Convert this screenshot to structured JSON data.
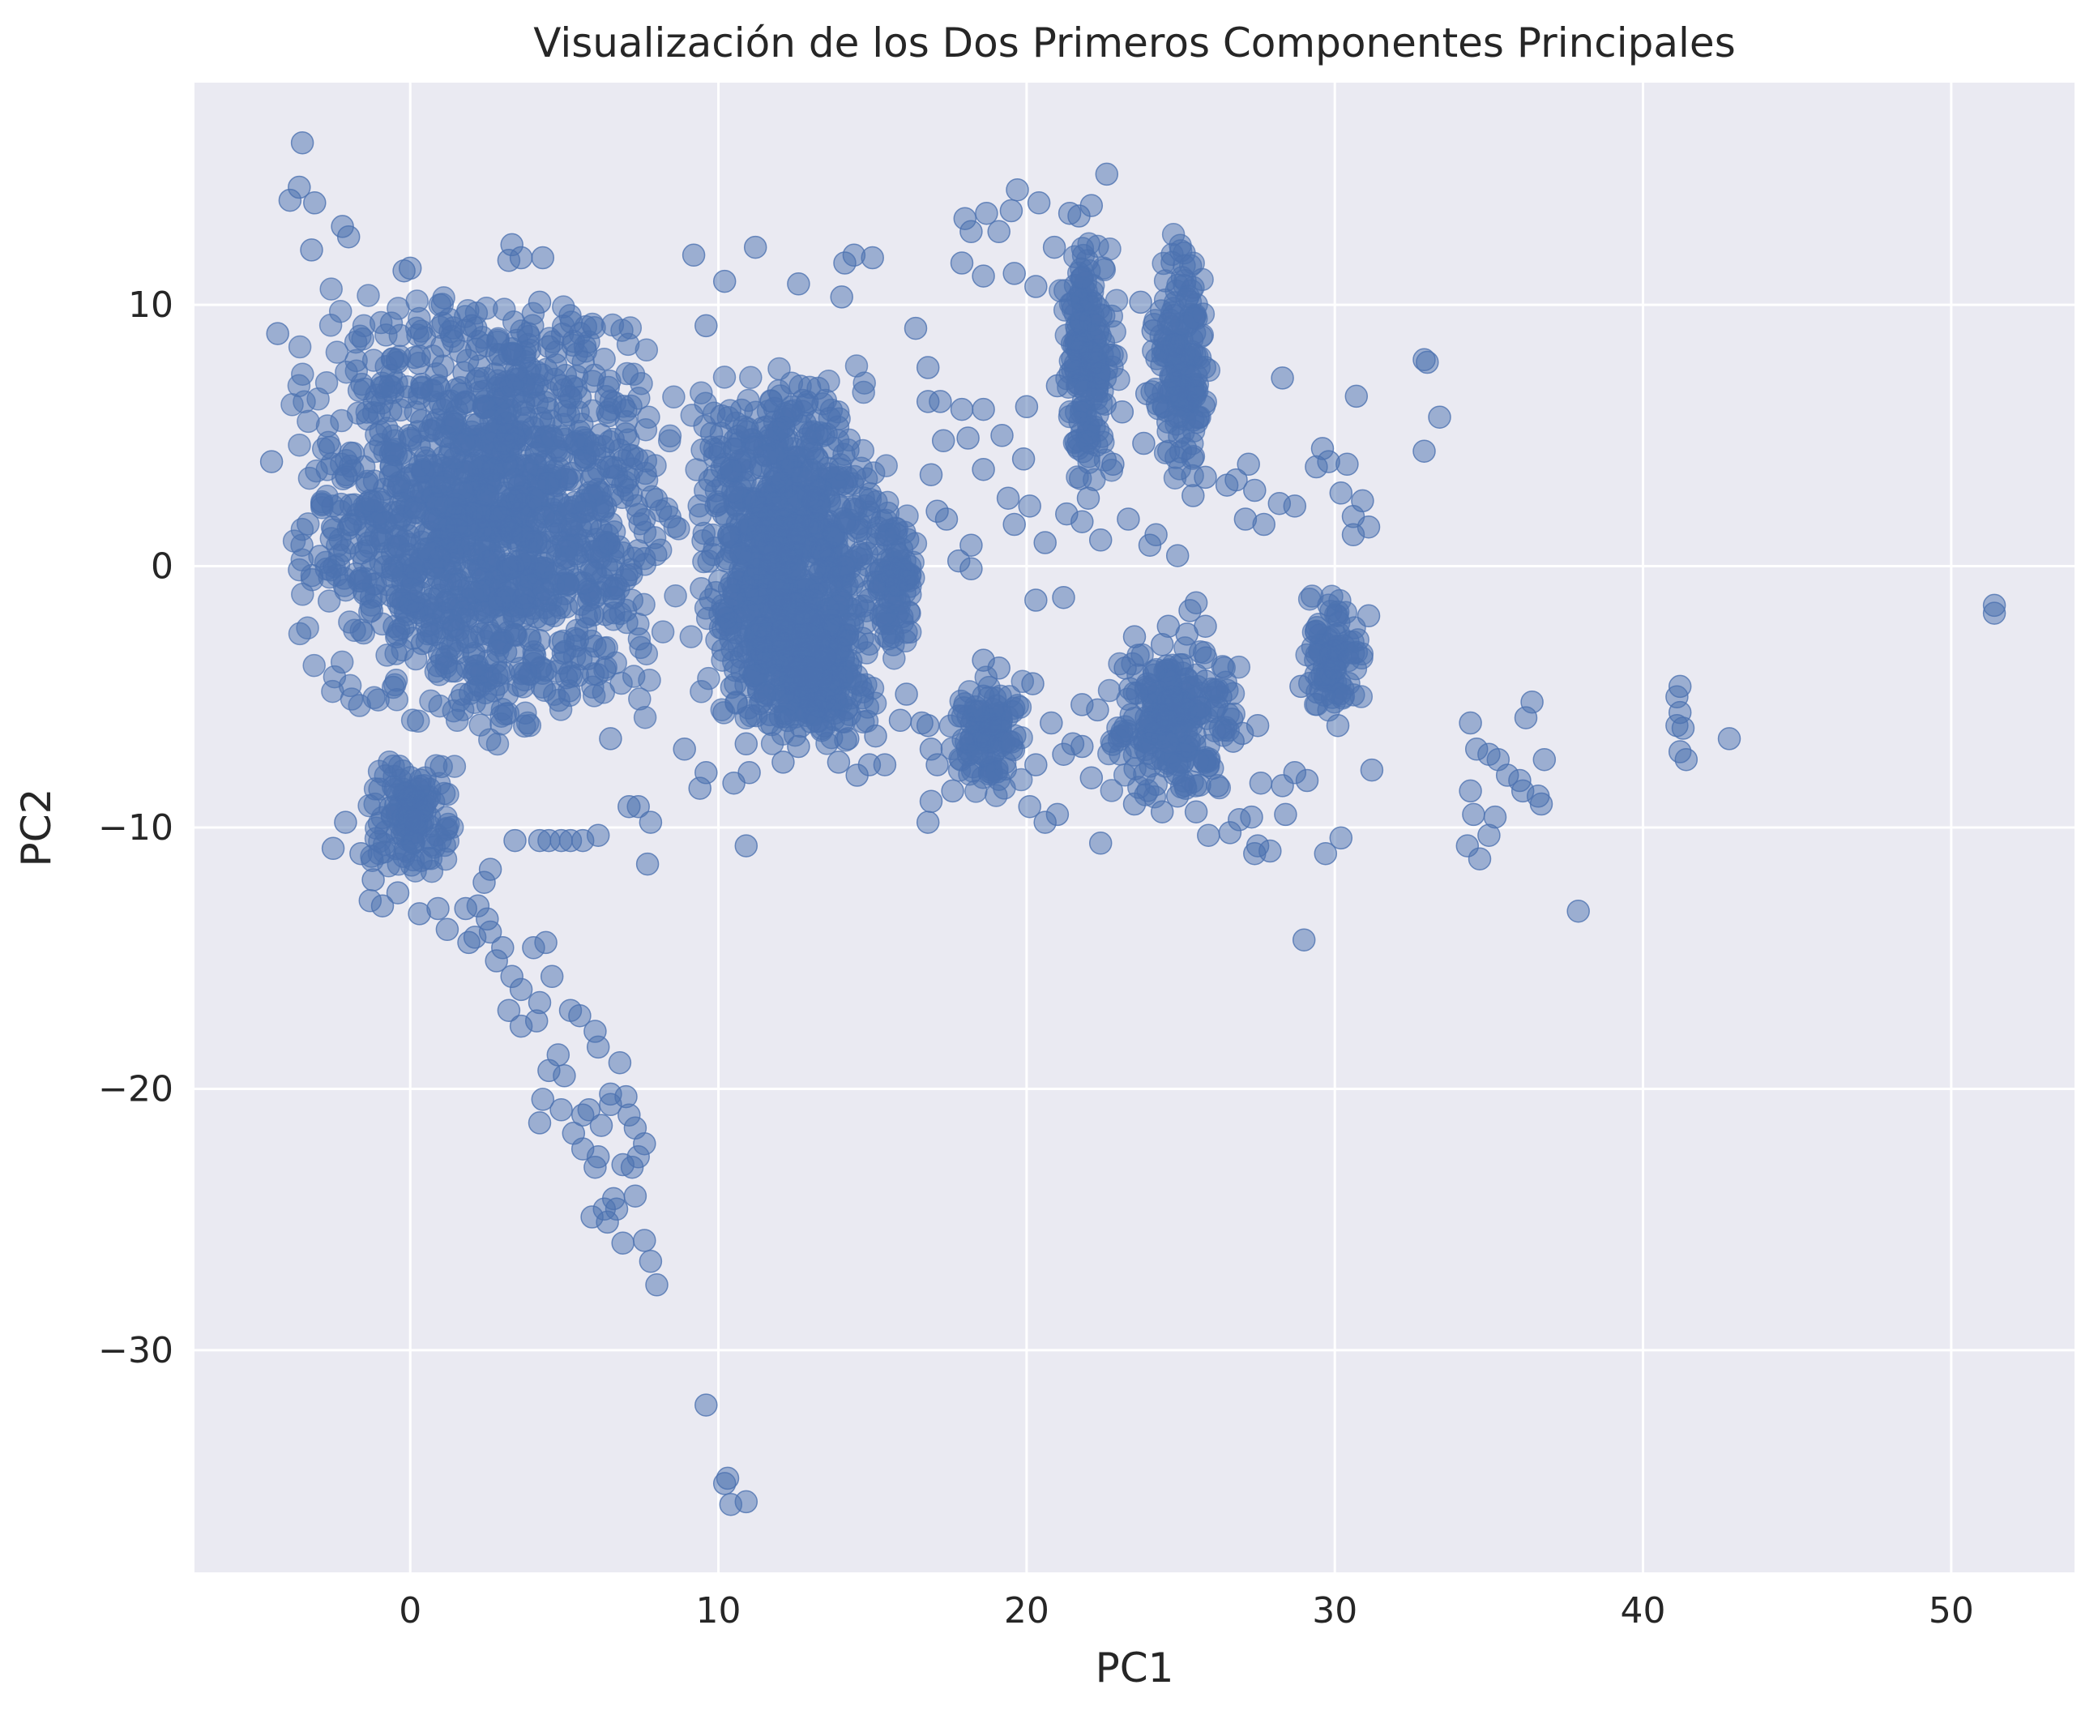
{
  "chart_data": {
    "type": "scatter",
    "title": "Visualización de los Dos Primeros Componentes Principales",
    "xlabel": "PC1",
    "ylabel": "PC2",
    "xlim": [
      -7,
      54
    ],
    "ylim": [
      -38.5,
      18.5
    ],
    "xticks": [
      0,
      10,
      20,
      30,
      40,
      50
    ],
    "yticks": [
      10,
      0,
      -10,
      -20,
      -30
    ],
    "xtick_labels": [
      "0",
      "10",
      "20",
      "30",
      "40",
      "50"
    ],
    "ytick_labels": [
      "10",
      "0",
      "−10",
      "−20",
      "−30"
    ],
    "grid": true,
    "background_color": "#eaeaf2",
    "point_color": "#4c72b0",
    "point_alpha": 0.5,
    "dense_regions": [
      {
        "x_range": [
          -4,
          9
        ],
        "y_range": [
          -7,
          11
        ]
      },
      {
        "x_range": [
          -1.5,
          1.5
        ],
        "y_range": [
          -12,
          -7
        ]
      },
      {
        "x_range": [
          9,
          15.5
        ],
        "y_range": [
          -7,
          8
        ]
      },
      {
        "x_range": [
          11,
          15
        ],
        "y_range": [
          -7,
          -1
        ]
      },
      {
        "x_range": [
          15,
          16.5
        ],
        "y_range": [
          -4,
          3
        ]
      },
      {
        "x_range": [
          21,
          23
        ],
        "y_range": [
          3,
          13
        ]
      },
      {
        "x_range": [
          24,
          26
        ],
        "y_range": [
          3,
          13
        ]
      },
      {
        "x_range": [
          22.5,
          27
        ],
        "y_range": [
          -9,
          -3
        ]
      },
      {
        "x_range": [
          17.5,
          20
        ],
        "y_range": [
          -9,
          -4
        ]
      },
      {
        "x_range": [
          29,
          31
        ],
        "y_range": [
          -6,
          -1
        ]
      }
    ],
    "points": [
      [
        -3.5,
        16.2
      ],
      [
        -3.6,
        14.5
      ],
      [
        -3.9,
        14.0
      ],
      [
        -3.1,
        13.9
      ],
      [
        -2.2,
        13.0
      ],
      [
        -2.0,
        12.6
      ],
      [
        -3.2,
        12.1
      ],
      [
        -0.2,
        11.3
      ],
      [
        0.0,
        11.4
      ],
      [
        3.3,
        12.3
      ],
      [
        3.2,
        11.7
      ],
      [
        3.6,
        11.8
      ],
      [
        4.3,
        11.8
      ],
      [
        4.2,
        10.1
      ],
      [
        -4.3,
        8.9
      ],
      [
        -4.5,
        4.0
      ],
      [
        2.0,
        9.2
      ],
      [
        3.0,
        7.7
      ],
      [
        4.5,
        8.4
      ],
      [
        5.3,
        8.6
      ],
      [
        4.9,
        6.9
      ],
      [
        9.2,
        11.9
      ],
      [
        10.2,
        10.9
      ],
      [
        9.6,
        9.2
      ],
      [
        11.2,
        12.2
      ],
      [
        12.6,
        10.8
      ],
      [
        14.1,
        11.6
      ],
      [
        14.4,
        11.9
      ],
      [
        15.0,
        11.8
      ],
      [
        14.0,
        10.3
      ],
      [
        16.4,
        9.1
      ],
      [
        16.8,
        7.6
      ],
      [
        17.9,
        6.0
      ],
      [
        17.2,
        6.3
      ],
      [
        16.8,
        6.3
      ],
      [
        18.6,
        6.0
      ],
      [
        17.3,
        4.8
      ],
      [
        18.1,
        4.9
      ],
      [
        18.6,
        3.7
      ],
      [
        19.2,
        5.0
      ],
      [
        20.0,
        6.1
      ],
      [
        21.0,
        6.9
      ],
      [
        16.9,
        3.5
      ],
      [
        17.1,
        2.1
      ],
      [
        17.4,
        1.8
      ],
      [
        18.2,
        0.8
      ],
      [
        17.8,
        0.2
      ],
      [
        18.2,
        -0.1
      ],
      [
        16.2,
        -1.8
      ],
      [
        19.4,
        2.6
      ],
      [
        19.6,
        1.6
      ],
      [
        20.6,
        0.9
      ],
      [
        20.3,
        -1.3
      ],
      [
        21.2,
        -1.2
      ],
      [
        20.1,
        2.3
      ],
      [
        19.9,
        4.1
      ],
      [
        18.0,
        13.3
      ],
      [
        18.2,
        12.8
      ],
      [
        18.7,
        13.5
      ],
      [
        19.1,
        12.8
      ],
      [
        19.7,
        14.4
      ],
      [
        20.4,
        13.9
      ],
      [
        19.5,
        13.6
      ],
      [
        17.9,
        11.6
      ],
      [
        18.6,
        11.1
      ],
      [
        19.6,
        11.2
      ],
      [
        20.3,
        10.7
      ],
      [
        20.9,
        12.2
      ],
      [
        21.4,
        13.5
      ],
      [
        21.7,
        13.4
      ],
      [
        22.1,
        13.8
      ],
      [
        22.6,
        15.0
      ],
      [
        23.7,
        10.1
      ],
      [
        24.1,
        9.0
      ],
      [
        23.9,
        6.6
      ],
      [
        23.1,
        5.9
      ],
      [
        23.8,
        4.7
      ],
      [
        22.8,
        3.9
      ],
      [
        22.0,
        2.6
      ],
      [
        21.3,
        2.0
      ],
      [
        21.8,
        1.7
      ],
      [
        22.4,
        1.0
      ],
      [
        23.3,
        1.8
      ],
      [
        24.0,
        0.8
      ],
      [
        24.2,
        1.2
      ],
      [
        24.9,
        0.4
      ],
      [
        25.4,
        2.7
      ],
      [
        25.8,
        3.4
      ],
      [
        26.5,
        3.1
      ],
      [
        26.8,
        3.3
      ],
      [
        27.2,
        3.9
      ],
      [
        27.4,
        2.9
      ],
      [
        27.1,
        1.8
      ],
      [
        27.7,
        1.6
      ],
      [
        28.2,
        2.4
      ],
      [
        28.3,
        7.2
      ],
      [
        28.7,
        2.3
      ],
      [
        29.4,
        3.8
      ],
      [
        29.6,
        4.5
      ],
      [
        29.8,
        4.0
      ],
      [
        30.4,
        3.9
      ],
      [
        30.2,
        2.8
      ],
      [
        30.6,
        1.9
      ],
      [
        30.6,
        1.2
      ],
      [
        30.9,
        2.5
      ],
      [
        31.1,
        1.5
      ],
      [
        30.7,
        6.5
      ],
      [
        32.9,
        7.9
      ],
      [
        33.0,
        7.8
      ],
      [
        32.9,
        4.4
      ],
      [
        33.4,
        5.7
      ],
      [
        20.2,
        -4.5
      ],
      [
        20.8,
        -6.0
      ],
      [
        20.3,
        -7.6
      ],
      [
        20.1,
        -9.2
      ],
      [
        20.6,
        -9.8
      ],
      [
        21.0,
        -9.5
      ],
      [
        21.5,
        -6.8
      ],
      [
        21.2,
        -7.2
      ],
      [
        21.8,
        -5.3
      ],
      [
        22.3,
        -5.5
      ],
      [
        22.4,
        -10.6
      ],
      [
        22.1,
        -8.1
      ],
      [
        21.8,
        -6.9
      ],
      [
        16.8,
        -6.1
      ],
      [
        17.1,
        -7.6
      ],
      [
        16.9,
        -9.0
      ],
      [
        17.6,
        -8.6
      ],
      [
        16.8,
        -9.8
      ],
      [
        18.6,
        -3.6
      ],
      [
        19.1,
        -3.9
      ],
      [
        27.3,
        -9.6
      ],
      [
        27.4,
        -11.0
      ],
      [
        27.5,
        -10.7
      ],
      [
        27.9,
        -10.9
      ],
      [
        26.9,
        -9.7
      ],
      [
        27.6,
        -8.3
      ],
      [
        28.4,
        -9.5
      ],
      [
        28.7,
        -7.9
      ],
      [
        28.3,
        -8.4
      ],
      [
        28.9,
        -4.6
      ],
      [
        29.1,
        -8.2
      ],
      [
        29.7,
        -11.0
      ],
      [
        29.0,
        -14.3
      ],
      [
        30.2,
        -10.4
      ],
      [
        31.2,
        -7.8
      ],
      [
        30.1,
        -6.1
      ],
      [
        31.1,
        -1.9
      ],
      [
        34.4,
        -6.0
      ],
      [
        34.6,
        -7.0
      ],
      [
        34.4,
        -8.6
      ],
      [
        34.5,
        -9.5
      ],
      [
        34.3,
        -10.7
      ],
      [
        34.7,
        -11.2
      ],
      [
        35.0,
        -10.3
      ],
      [
        35.2,
        -9.6
      ],
      [
        35.0,
        -7.2
      ],
      [
        35.3,
        -7.4
      ],
      [
        35.6,
        -8.0
      ],
      [
        36.0,
        -8.2
      ],
      [
        36.2,
        -5.8
      ],
      [
        36.4,
        -5.2
      ],
      [
        36.1,
        -8.6
      ],
      [
        36.6,
        -8.8
      ],
      [
        36.7,
        -9.1
      ],
      [
        36.8,
        -7.4
      ],
      [
        37.9,
        -13.2
      ],
      [
        41.2,
        -4.6
      ],
      [
        41.1,
        -5.0
      ],
      [
        41.2,
        -5.6
      ],
      [
        41.3,
        -6.2
      ],
      [
        41.1,
        -6.1
      ],
      [
        41.2,
        -7.1
      ],
      [
        41.4,
        -7.4
      ],
      [
        42.8,
        -6.6
      ],
      [
        51.4,
        -1.5
      ],
      [
        51.4,
        -1.8
      ],
      [
        -2.1,
        -9.8
      ],
      [
        -2.5,
        -10.8
      ],
      [
        -1.6,
        -11.0
      ],
      [
        -1.2,
        -12.0
      ],
      [
        -1.3,
        -12.8
      ],
      [
        -0.9,
        -13.0
      ],
      [
        -0.4,
        -12.5
      ],
      [
        0.3,
        -13.3
      ],
      [
        0.9,
        -13.1
      ],
      [
        1.2,
        -13.9
      ],
      [
        1.8,
        -13.1
      ],
      [
        2.2,
        -13.0
      ],
      [
        2.5,
        -13.5
      ],
      [
        2.1,
        -14.2
      ],
      [
        2.6,
        -14.0
      ],
      [
        1.9,
        -14.4
      ],
      [
        2.4,
        -12.1
      ],
      [
        2.6,
        -11.6
      ],
      [
        3.4,
        -10.5
      ],
      [
        4.2,
        -10.5
      ],
      [
        4.5,
        -10.5
      ],
      [
        4.9,
        -10.5
      ],
      [
        5.2,
        -10.5
      ],
      [
        5.6,
        -10.5
      ],
      [
        6.1,
        -10.3
      ],
      [
        7.1,
        -9.2
      ],
      [
        7.4,
        -9.2
      ],
      [
        7.8,
        -9.8
      ],
      [
        7.7,
        -11.4
      ],
      [
        6.5,
        -6.6
      ],
      [
        3.0,
        -14.6
      ],
      [
        2.8,
        -15.1
      ],
      [
        3.3,
        -15.7
      ],
      [
        3.6,
        -16.2
      ],
      [
        3.2,
        -17.0
      ],
      [
        3.6,
        -17.6
      ],
      [
        4.1,
        -17.4
      ],
      [
        4.2,
        -16.7
      ],
      [
        4.6,
        -15.7
      ],
      [
        4.4,
        -14.4
      ],
      [
        4.0,
        -14.6
      ],
      [
        4.3,
        -20.4
      ],
      [
        4.5,
        -19.3
      ],
      [
        4.8,
        -18.7
      ],
      [
        5.0,
        -19.5
      ],
      [
        4.2,
        -21.3
      ],
      [
        4.9,
        -20.8
      ],
      [
        5.3,
        -21.7
      ],
      [
        5.6,
        -21.0
      ],
      [
        5.2,
        -17.0
      ],
      [
        5.5,
        -17.2
      ],
      [
        5.8,
        -20.8
      ],
      [
        6.2,
        -21.4
      ],
      [
        6.1,
        -22.6
      ],
      [
        6.0,
        -23.0
      ],
      [
        5.9,
        -24.9
      ],
      [
        6.3,
        -24.6
      ],
      [
        6.4,
        -25.1
      ],
      [
        6.6,
        -24.2
      ],
      [
        6.7,
        -24.6
      ],
      [
        6.9,
        -22.9
      ],
      [
        7.2,
        -23.0
      ],
      [
        7.4,
        -22.6
      ],
      [
        7.6,
        -22.1
      ],
      [
        7.1,
        -21.0
      ],
      [
        7.3,
        -21.5
      ],
      [
        6.5,
        -20.6
      ],
      [
        6.1,
        -18.4
      ],
      [
        6.0,
        -17.8
      ],
      [
        6.8,
        -19.0
      ],
      [
        7.0,
        -20.3
      ],
      [
        6.5,
        -20.2
      ],
      [
        7.3,
        -24.1
      ],
      [
        6.9,
        -25.9
      ],
      [
        7.6,
        -25.8
      ],
      [
        7.8,
        -26.6
      ],
      [
        8.0,
        -27.5
      ],
      [
        5.6,
        -22.3
      ],
      [
        9.6,
        -32.1
      ],
      [
        10.2,
        -35.1
      ],
      [
        10.3,
        -34.9
      ],
      [
        10.4,
        -35.9
      ],
      [
        10.9,
        -35.8
      ],
      [
        10.9,
        -10.7
      ],
      [
        11.0,
        -7.9
      ],
      [
        10.9,
        -6.8
      ],
      [
        10.5,
        -8.3
      ],
      [
        9.6,
        -7.9
      ],
      [
        9.4,
        -8.5
      ],
      [
        8.9,
        -7.0
      ],
      [
        12.6,
        -6.9
      ],
      [
        12.1,
        -7.5
      ],
      [
        13.9,
        -7.5
      ],
      [
        14.5,
        -8.0
      ],
      [
        14.9,
        -7.6
      ],
      [
        15.4,
        -7.6
      ],
      [
        15.1,
        -6.5
      ],
      [
        14.2,
        -6.6
      ],
      [
        16.6,
        -6.0
      ],
      [
        15.9,
        -5.9
      ],
      [
        16.1,
        -4.9
      ],
      [
        16.9,
        -7.0
      ],
      [
        24.4,
        -9.4
      ],
      [
        23.5,
        -9.1
      ],
      [
        24.9,
        -8.8
      ],
      [
        25.5,
        -9.4
      ],
      [
        25.9,
        -10.3
      ],
      [
        26.6,
        -10.2
      ],
      [
        26.2,
        -8.4
      ],
      [
        26.7,
        -6.7
      ],
      [
        27.0,
        -6.4
      ],
      [
        27.5,
        -6.1
      ],
      [
        26.3,
        -5.0
      ],
      [
        25.8,
        -4.4
      ],
      [
        25.2,
        -2.6
      ],
      [
        24.6,
        -2.3
      ],
      [
        24.4,
        -3.0
      ],
      [
        23.5,
        -2.7
      ],
      [
        23.2,
        -3.9
      ],
      [
        25.8,
        -2.3
      ],
      [
        25.5,
        -1.4
      ],
      [
        25.3,
        -1.7
      ]
    ]
  }
}
